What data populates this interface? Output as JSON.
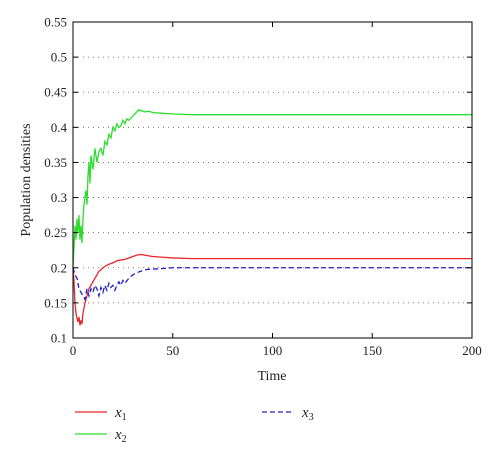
{
  "chart_data": {
    "type": "line",
    "title": "",
    "xlabel": "Time",
    "ylabel": "Population densities",
    "xlim": [
      0,
      200
    ],
    "ylim": [
      0.1,
      0.55
    ],
    "xticks": [
      0,
      50,
      100,
      150,
      200
    ],
    "yticks": [
      0.1,
      0.15,
      0.2,
      0.25,
      0.3,
      0.35,
      0.4,
      0.45,
      0.5,
      0.55
    ],
    "grid": "horizontal dotted",
    "legend_position": "bottom, outside plot",
    "series": [
      {
        "name": "x1",
        "name_base": "x",
        "name_sub": "1",
        "color": "#e8262b",
        "dash": "solid",
        "points": [
          [
            0,
            0.2
          ],
          [
            0.5,
            0.18
          ],
          [
            1,
            0.15
          ],
          [
            1.5,
            0.135
          ],
          [
            2,
            0.128
          ],
          [
            2.5,
            0.123
          ],
          [
            3,
            0.13
          ],
          [
            3.5,
            0.118
          ],
          [
            4,
            0.125
          ],
          [
            4.5,
            0.12
          ],
          [
            5,
            0.135
          ],
          [
            6,
            0.15
          ],
          [
            7,
            0.16
          ],
          [
            8,
            0.17
          ],
          [
            9,
            0.175
          ],
          [
            10,
            0.18
          ],
          [
            11,
            0.185
          ],
          [
            12,
            0.19
          ],
          [
            13,
            0.195
          ],
          [
            14,
            0.197
          ],
          [
            15,
            0.2
          ],
          [
            16,
            0.202
          ],
          [
            18,
            0.205
          ],
          [
            20,
            0.207
          ],
          [
            22,
            0.21
          ],
          [
            24,
            0.211
          ],
          [
            26,
            0.212
          ],
          [
            28,
            0.214
          ],
          [
            30,
            0.216
          ],
          [
            32,
            0.218
          ],
          [
            34,
            0.219
          ],
          [
            36,
            0.218
          ],
          [
            38,
            0.217
          ],
          [
            40,
            0.216
          ],
          [
            45,
            0.215
          ],
          [
            50,
            0.214
          ],
          [
            60,
            0.213
          ],
          [
            80,
            0.213
          ],
          [
            100,
            0.213
          ],
          [
            150,
            0.213
          ],
          [
            200,
            0.213
          ]
        ]
      },
      {
        "name": "x2",
        "name_base": "x",
        "name_sub": "2",
        "color": "#2ddc2d",
        "dash": "solid",
        "points": [
          [
            0,
            0.2
          ],
          [
            0.5,
            0.23
          ],
          [
            1,
            0.26
          ],
          [
            1.5,
            0.24
          ],
          [
            2,
            0.27
          ],
          [
            2.5,
            0.25
          ],
          [
            3,
            0.275
          ],
          [
            3.5,
            0.24
          ],
          [
            4,
            0.26
          ],
          [
            4.5,
            0.235
          ],
          [
            5,
            0.27
          ],
          [
            5.5,
            0.29
          ],
          [
            6,
            0.3
          ],
          [
            6.5,
            0.31
          ],
          [
            7,
            0.29
          ],
          [
            7.5,
            0.33
          ],
          [
            8,
            0.35
          ],
          [
            8.5,
            0.32
          ],
          [
            9,
            0.36
          ],
          [
            10,
            0.34
          ],
          [
            11,
            0.37
          ],
          [
            12,
            0.35
          ],
          [
            13,
            0.365
          ],
          [
            14,
            0.37
          ],
          [
            15,
            0.36
          ],
          [
            16,
            0.38
          ],
          [
            17,
            0.375
          ],
          [
            18,
            0.39
          ],
          [
            19,
            0.385
          ],
          [
            20,
            0.4
          ],
          [
            21,
            0.395
          ],
          [
            22,
            0.405
          ],
          [
            23,
            0.4
          ],
          [
            24,
            0.402
          ],
          [
            25,
            0.41
          ],
          [
            26,
            0.405
          ],
          [
            27,
            0.412
          ],
          [
            28,
            0.41
          ],
          [
            30,
            0.416
          ],
          [
            32,
            0.422
          ],
          [
            33,
            0.425
          ],
          [
            34,
            0.424
          ],
          [
            36,
            0.422
          ],
          [
            38,
            0.423
          ],
          [
            40,
            0.421
          ],
          [
            45,
            0.42
          ],
          [
            50,
            0.419
          ],
          [
            60,
            0.418
          ],
          [
            80,
            0.418
          ],
          [
            100,
            0.418
          ],
          [
            150,
            0.418
          ],
          [
            200,
            0.418
          ]
        ]
      },
      {
        "name": "x3",
        "name_base": "x",
        "name_sub": "3",
        "color": "#2020c8",
        "dash": "dashed",
        "points": [
          [
            0,
            0.2
          ],
          [
            1,
            0.19
          ],
          [
            2,
            0.185
          ],
          [
            3,
            0.17
          ],
          [
            4,
            0.165
          ],
          [
            5,
            0.16
          ],
          [
            6,
            0.155
          ],
          [
            7,
            0.17
          ],
          [
            8,
            0.16
          ],
          [
            9,
            0.17
          ],
          [
            10,
            0.165
          ],
          [
            11,
            0.175
          ],
          [
            12,
            0.17
          ],
          [
            13,
            0.16
          ],
          [
            14,
            0.172
          ],
          [
            15,
            0.165
          ],
          [
            16,
            0.175
          ],
          [
            17,
            0.168
          ],
          [
            18,
            0.178
          ],
          [
            19,
            0.172
          ],
          [
            20,
            0.175
          ],
          [
            21,
            0.168
          ],
          [
            22,
            0.175
          ],
          [
            23,
            0.18
          ],
          [
            24,
            0.175
          ],
          [
            25,
            0.182
          ],
          [
            26,
            0.178
          ],
          [
            28,
            0.185
          ],
          [
            30,
            0.19
          ],
          [
            32,
            0.193
          ],
          [
            34,
            0.195
          ],
          [
            36,
            0.197
          ],
          [
            38,
            0.198
          ],
          [
            40,
            0.198
          ],
          [
            45,
            0.199
          ],
          [
            50,
            0.2
          ],
          [
            60,
            0.2
          ],
          [
            80,
            0.2
          ],
          [
            100,
            0.2
          ],
          [
            150,
            0.2
          ],
          [
            200,
            0.2
          ]
        ]
      }
    ]
  }
}
